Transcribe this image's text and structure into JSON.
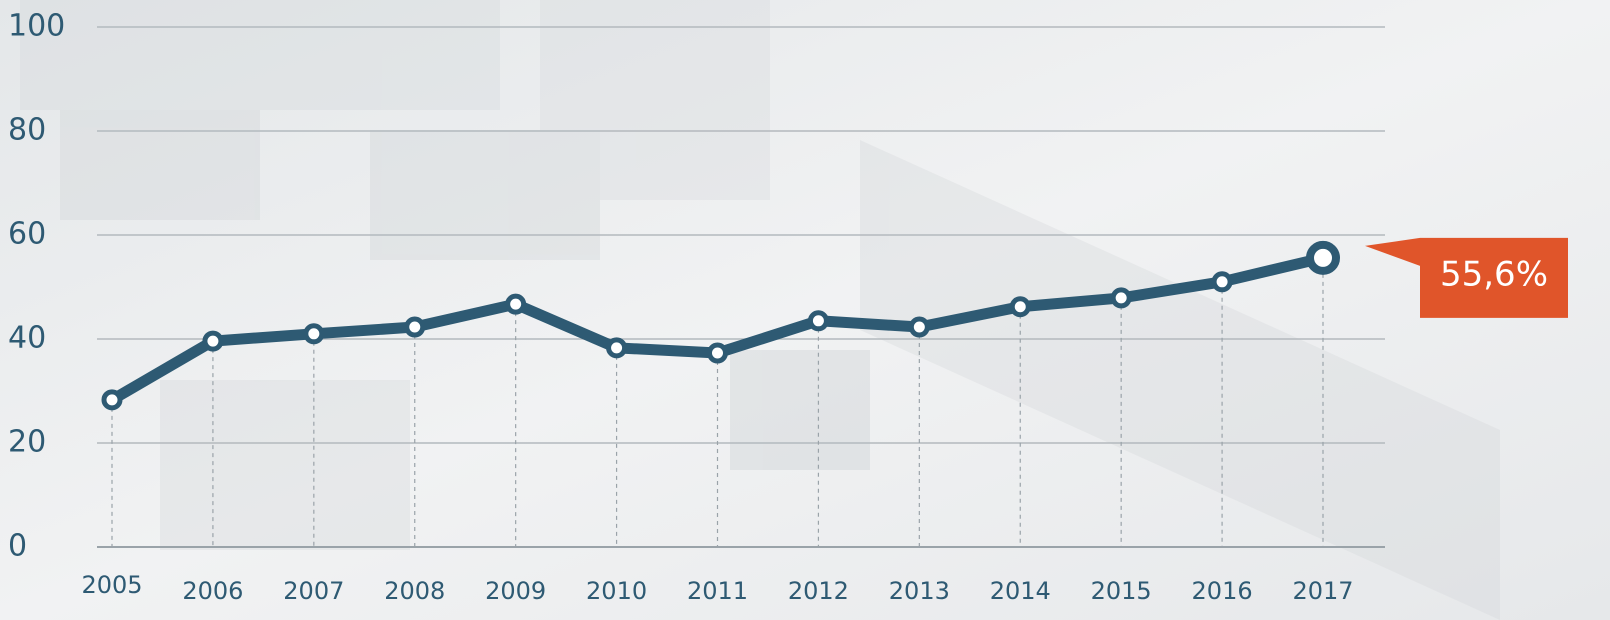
{
  "chart_data": {
    "type": "line",
    "categories": [
      "2005",
      "2006",
      "2007",
      "2008",
      "2009",
      "2010",
      "2011",
      "2012",
      "2013",
      "2014",
      "2015",
      "2016",
      "2017"
    ],
    "values": [
      28.3,
      39.6,
      41,
      42.3,
      46.7,
      38.3,
      37.3,
      43.5,
      42.3,
      46.2,
      47.9,
      51,
      55.6
    ],
    "value_labels": [
      null,
      null,
      null,
      null,
      null,
      null,
      null,
      null,
      null,
      null,
      null,
      null,
      "55,6%"
    ],
    "color": "#2e5a73",
    "label_color": "#e0552a",
    "ylim": [
      0,
      100
    ],
    "yticks": [
      0,
      20,
      40,
      60,
      80,
      100
    ],
    "grid": true
  }
}
